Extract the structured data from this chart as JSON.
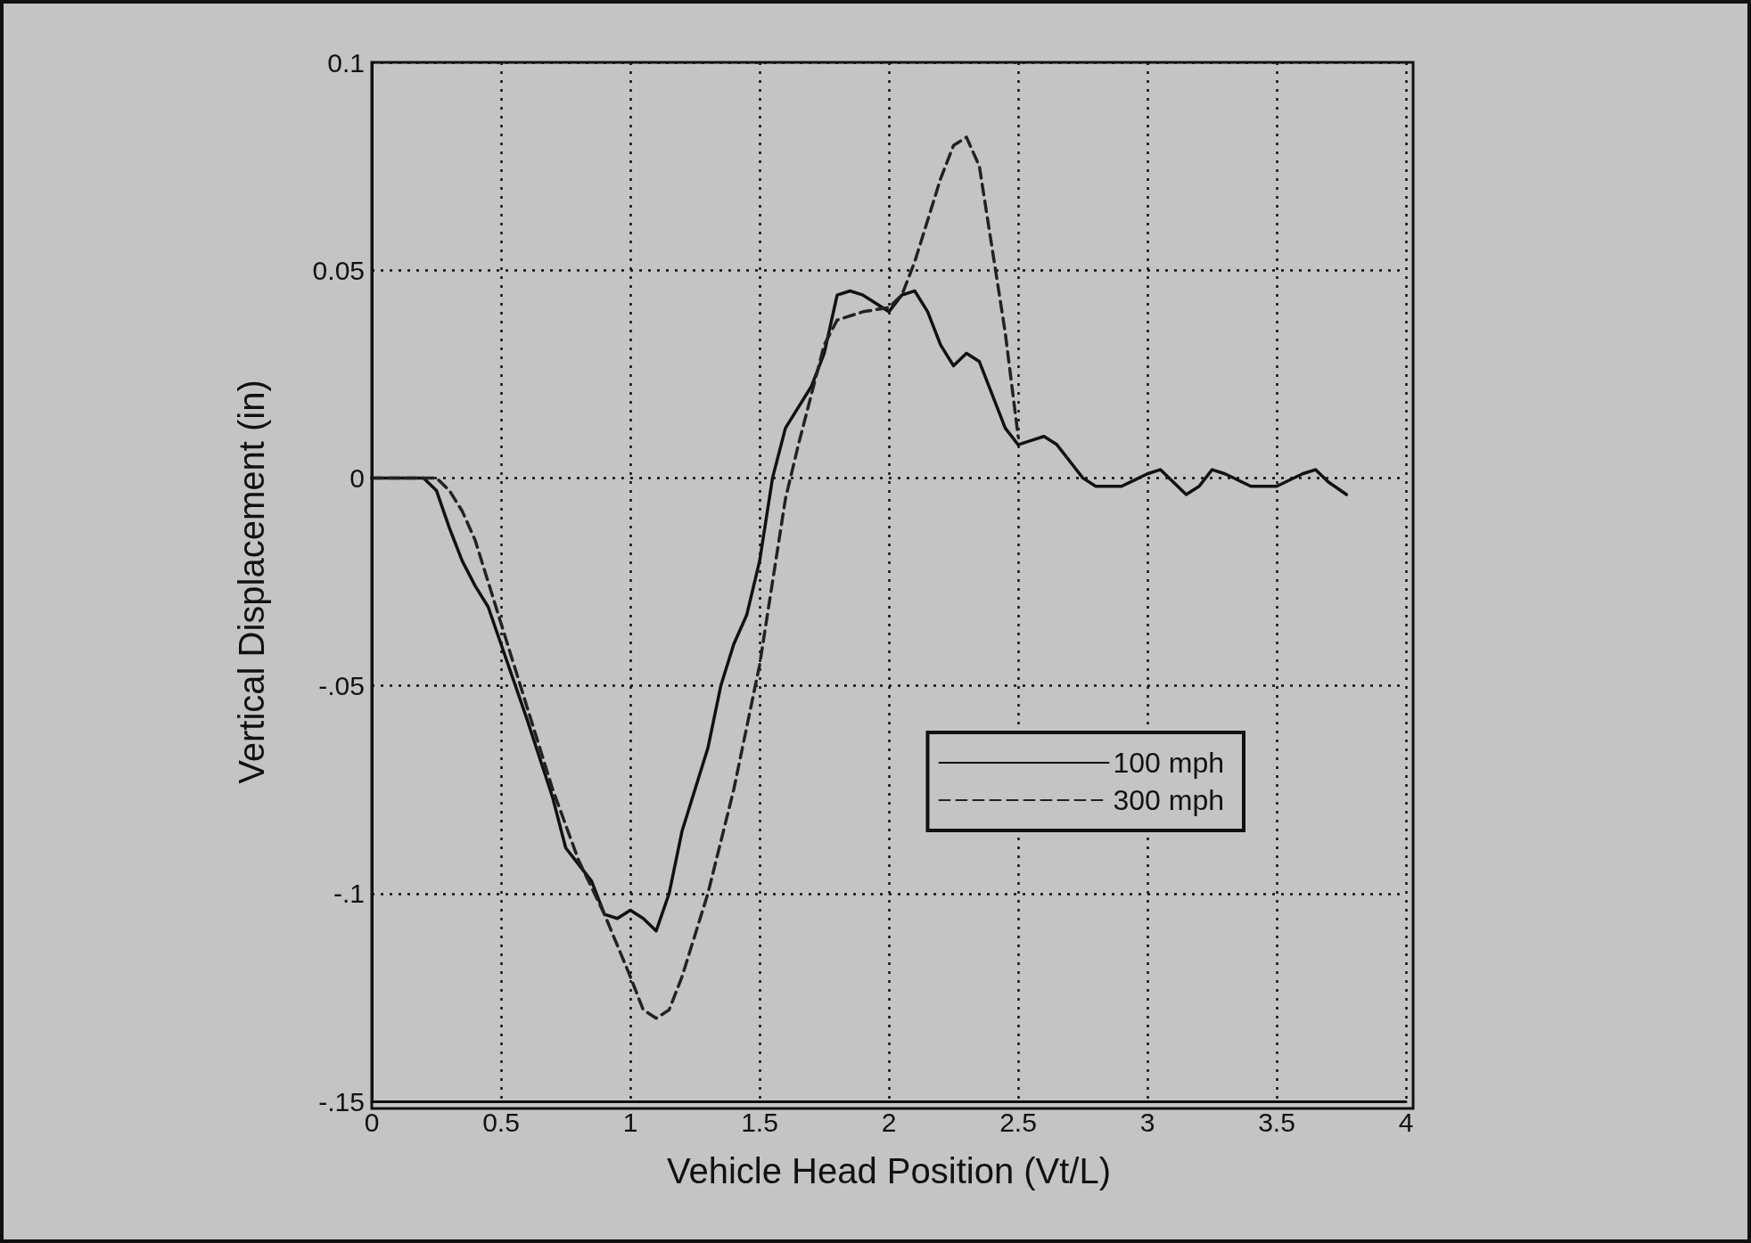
{
  "chart_data": {
    "type": "line",
    "xlabel": "Vehicle Head Position (Vt/L)",
    "ylabel": "Vertical Displacement (in)",
    "xlim": [
      0,
      4
    ],
    "xticks": [
      0,
      0.5,
      1,
      1.5,
      2,
      2.5,
      3,
      3.5,
      4
    ],
    "ylim": [
      -0.15,
      0.1
    ],
    "yticks": [
      {
        "value": -0.15,
        "label": "-.15"
      },
      {
        "value": -0.1,
        "label": "-.1"
      },
      {
        "value": -0.05,
        "label": "-.05"
      },
      0,
      0.05,
      0.1
    ],
    "grid": true,
    "legend": "bottom right",
    "marker": "none",
    "series": [
      {
        "name": "100 mph",
        "color": "#111111",
        "line_style": "solid",
        "x": [
          0,
          0.2,
          0.25,
          0.3,
          0.35,
          0.4,
          0.45,
          0.5,
          0.6,
          0.7,
          0.75,
          0.8,
          0.85,
          0.9,
          0.95,
          1.0,
          1.05,
          1.1,
          1.15,
          1.2,
          1.3,
          1.35,
          1.4,
          1.45,
          1.5,
          1.55,
          1.6,
          1.7,
          1.75,
          1.8,
          1.85,
          1.9,
          1.95,
          2.0,
          2.05,
          2.1,
          2.15,
          2.2,
          2.25,
          2.3,
          2.35,
          2.4,
          2.45,
          2.5,
          2.55,
          2.6,
          2.65,
          2.7,
          2.75,
          2.8,
          2.9,
          3.0,
          3.05,
          3.1,
          3.15,
          3.2,
          3.25,
          3.3,
          3.4,
          3.5,
          3.6,
          3.65,
          3.7,
          3.77
        ],
        "values": [
          0,
          0,
          -0.003,
          -0.012,
          -0.02,
          -0.026,
          -0.031,
          -0.04,
          -0.058,
          -0.077,
          -0.089,
          -0.093,
          -0.097,
          -0.105,
          -0.106,
          -0.104,
          -0.106,
          -0.109,
          -0.1,
          -0.085,
          -0.065,
          -0.05,
          -0.04,
          -0.033,
          -0.02,
          0,
          0.012,
          0.022,
          0.03,
          0.044,
          0.045,
          0.044,
          0.042,
          0.04,
          0.044,
          0.045,
          0.04,
          0.032,
          0.027,
          0.03,
          0.028,
          0.02,
          0.012,
          0.008,
          0.009,
          0.01,
          0.008,
          0.004,
          0,
          -0.002,
          -0.002,
          0.001,
          0.002,
          -0.001,
          -0.004,
          -0.002,
          0.002,
          0.001,
          -0.002,
          -0.002,
          0.001,
          0.002,
          -0.001,
          -0.004
        ]
      },
      {
        "name": "300 mph",
        "color": "#222222",
        "line_style": "dashed",
        "x": [
          0,
          0.25,
          0.3,
          0.35,
          0.4,
          0.45,
          0.5,
          0.6,
          0.7,
          0.8,
          0.9,
          1.0,
          1.05,
          1.1,
          1.15,
          1.2,
          1.3,
          1.4,
          1.5,
          1.55,
          1.6,
          1.65,
          1.7,
          1.75,
          1.8,
          1.9,
          2.0,
          2.05,
          2.1,
          2.15,
          2.2,
          2.25,
          2.3,
          2.35,
          2.4,
          2.45,
          2.5
        ],
        "values": [
          0,
          0,
          -0.003,
          -0.008,
          -0.015,
          -0.025,
          -0.035,
          -0.055,
          -0.075,
          -0.092,
          -0.105,
          -0.12,
          -0.128,
          -0.13,
          -0.128,
          -0.12,
          -0.1,
          -0.075,
          -0.045,
          -0.025,
          -0.005,
          0.008,
          0.02,
          0.032,
          0.038,
          0.04,
          0.041,
          0.044,
          0.052,
          0.062,
          0.072,
          0.08,
          0.082,
          0.075,
          0.055,
          0.035,
          0.01
        ]
      }
    ]
  }
}
